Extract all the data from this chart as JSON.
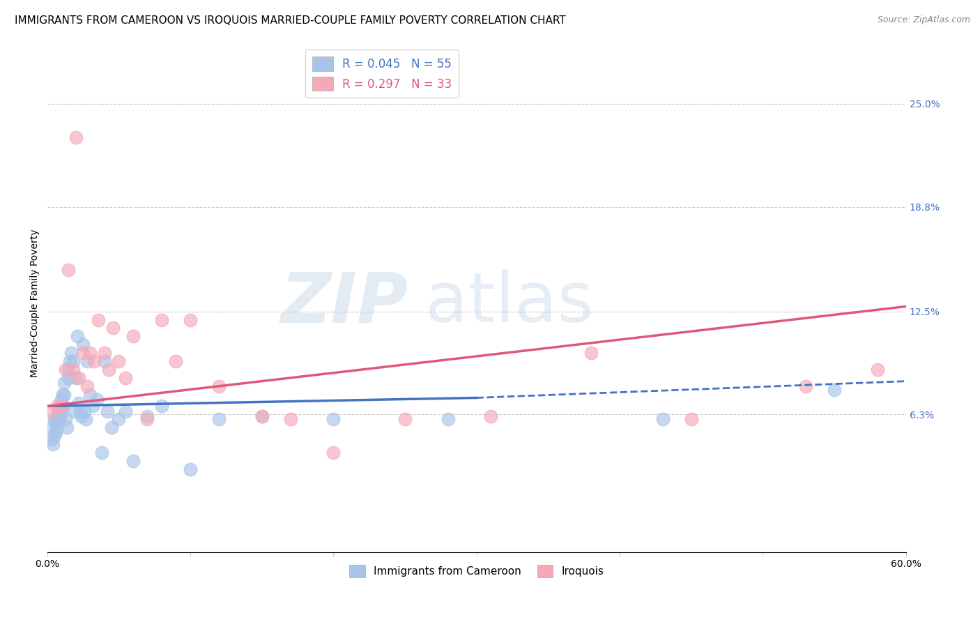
{
  "title": "IMMIGRANTS FROM CAMEROON VS IROQUOIS MARRIED-COUPLE FAMILY POVERTY CORRELATION CHART",
  "source": "Source: ZipAtlas.com",
  "ylabel": "Married-Couple Family Poverty",
  "xlim": [
    0.0,
    0.6
  ],
  "ylim": [
    -0.02,
    0.28
  ],
  "yticks": [
    0.063,
    0.125,
    0.188,
    0.25
  ],
  "ytick_labels": [
    "6.3%",
    "12.5%",
    "18.8%",
    "25.0%"
  ],
  "xticks": [
    0.0,
    0.1,
    0.2,
    0.3,
    0.4,
    0.5,
    0.6
  ],
  "xtick_labels": [
    "0.0%",
    "",
    "",
    "",
    "",
    "",
    "60.0%"
  ],
  "legend_entries": [
    {
      "label": "Immigrants from Cameroon",
      "color": "#a8c4e8",
      "R": "0.045",
      "N": "55"
    },
    {
      "label": "Iroquois",
      "color": "#f4a8b8",
      "R": "0.297",
      "N": "33"
    }
  ],
  "blue_scatter_x": [
    0.002,
    0.003,
    0.004,
    0.005,
    0.005,
    0.006,
    0.006,
    0.007,
    0.007,
    0.008,
    0.008,
    0.009,
    0.009,
    0.01,
    0.01,
    0.011,
    0.011,
    0.012,
    0.012,
    0.013,
    0.014,
    0.015,
    0.015,
    0.016,
    0.017,
    0.018,
    0.019,
    0.02,
    0.021,
    0.022,
    0.023,
    0.024,
    0.025,
    0.026,
    0.027,
    0.028,
    0.03,
    0.032,
    0.035,
    0.038,
    0.04,
    0.042,
    0.045,
    0.05,
    0.055,
    0.06,
    0.07,
    0.08,
    0.1,
    0.12,
    0.15,
    0.2,
    0.28,
    0.43,
    0.55
  ],
  "blue_scatter_y": [
    0.055,
    0.048,
    0.045,
    0.05,
    0.06,
    0.058,
    0.052,
    0.062,
    0.055,
    0.065,
    0.058,
    0.068,
    0.062,
    0.072,
    0.065,
    0.075,
    0.068,
    0.082,
    0.075,
    0.06,
    0.055,
    0.09,
    0.085,
    0.095,
    0.1,
    0.095,
    0.065,
    0.085,
    0.11,
    0.07,
    0.065,
    0.062,
    0.105,
    0.065,
    0.06,
    0.095,
    0.075,
    0.068,
    0.072,
    0.04,
    0.095,
    0.065,
    0.055,
    0.06,
    0.065,
    0.035,
    0.062,
    0.068,
    0.03,
    0.06,
    0.062,
    0.06,
    0.06,
    0.06,
    0.078
  ],
  "pink_scatter_x": [
    0.003,
    0.007,
    0.01,
    0.013,
    0.015,
    0.018,
    0.02,
    0.022,
    0.025,
    0.028,
    0.03,
    0.033,
    0.036,
    0.04,
    0.043,
    0.046,
    0.05,
    0.055,
    0.06,
    0.07,
    0.08,
    0.09,
    0.1,
    0.12,
    0.15,
    0.17,
    0.2,
    0.25,
    0.31,
    0.38,
    0.45,
    0.53,
    0.58
  ],
  "pink_scatter_y": [
    0.065,
    0.068,
    0.068,
    0.09,
    0.15,
    0.09,
    0.23,
    0.085,
    0.1,
    0.08,
    0.1,
    0.095,
    0.12,
    0.1,
    0.09,
    0.115,
    0.095,
    0.085,
    0.11,
    0.06,
    0.12,
    0.095,
    0.12,
    0.08,
    0.062,
    0.06,
    0.04,
    0.06,
    0.062,
    0.1,
    0.06,
    0.08,
    0.09
  ],
  "blue_line_x_start": 0.0,
  "blue_line_x_solid_end": 0.3,
  "blue_line_x_end": 0.6,
  "blue_line_y_start": 0.068,
  "blue_line_y_solid_end": 0.073,
  "blue_line_y_end": 0.083,
  "pink_line_x_start": 0.0,
  "pink_line_x_end": 0.6,
  "pink_line_y_start": 0.068,
  "pink_line_y_end": 0.128,
  "blue_line_color": "#4472c4",
  "pink_line_color": "#e05878",
  "blue_dot_color": "#a8c4e8",
  "pink_dot_color": "#f4a8b8",
  "background_color": "#ffffff",
  "watermark_zip": "ZIP",
  "watermark_atlas": "atlas",
  "title_fontsize": 11,
  "axis_label_fontsize": 10,
  "tick_fontsize": 10,
  "right_tick_color": "#4472c4"
}
